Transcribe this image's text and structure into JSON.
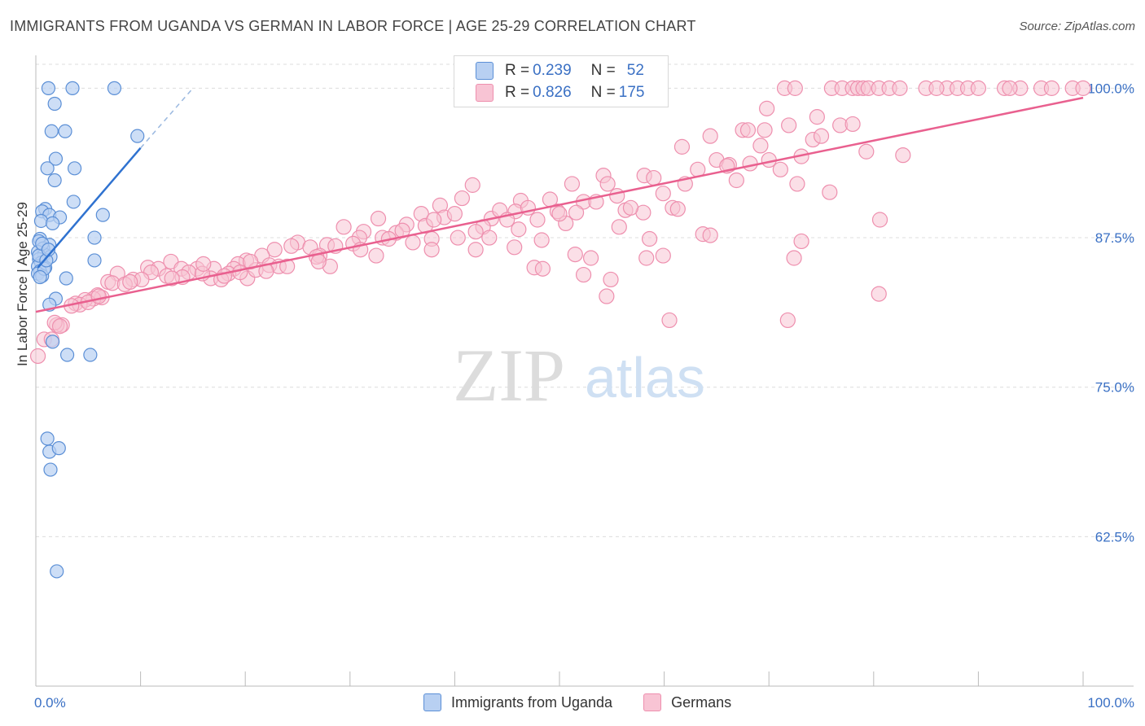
{
  "header": {
    "title": "IMMIGRANTS FROM UGANDA VS GERMAN IN LABOR FORCE | AGE 25-29 CORRELATION CHART",
    "source": "Source: ZipAtlas.com"
  },
  "watermark": {
    "zip": "ZIP",
    "atlas": "atlas"
  },
  "legend_top": {
    "rows": [
      {
        "r_label": "R = ",
        "r_value": "0.239",
        "n_label": "N = ",
        "n_value": "52"
      },
      {
        "r_label": "R = ",
        "r_value": "0.826",
        "n_label": "N = ",
        "n_value": "175"
      }
    ]
  },
  "colors": {
    "blue_fill": "#b8d0f2",
    "blue_stroke": "#5b8fd6",
    "blue_line": "#2f72d0",
    "pink_fill": "#f8c4d4",
    "pink_stroke": "#ee8fae",
    "pink_line": "#e9608f",
    "tick_label": "#3a70c4",
    "grid": "#dcdcdc"
  },
  "chart_data": {
    "type": "scatter",
    "title": "IMMIGRANTS FROM UGANDA VS GERMAN IN LABOR FORCE | AGE 25-29 CORRELATION CHART",
    "xlabel": "",
    "ylabel": "In Labor Force | Age 25-29",
    "xlim": [
      0,
      100
    ],
    "ylim": [
      50,
      102
    ],
    "x_tick_labels": [
      "0.0%",
      "100.0%"
    ],
    "y_ticks": [
      62.5,
      75.0,
      87.5,
      100.0
    ],
    "y_tick_labels": [
      "62.5%",
      "75.0%",
      "87.5%",
      "100.0%"
    ],
    "grid": true,
    "legend_position": "bottom",
    "series": [
      {
        "name": "Immigrants from Uganda",
        "r": 0.239,
        "n": 52,
        "trend": {
          "x0": 0.2,
          "y0": 85.0,
          "x1": 10.0,
          "y1": 95.0,
          "dash_to_x": 15.0,
          "dash_to_y": 100.0
        },
        "points": [
          [
            1.2,
            100
          ],
          [
            3.5,
            100
          ],
          [
            7.5,
            100
          ],
          [
            1.8,
            98.7
          ],
          [
            1.5,
            96.4
          ],
          [
            2.8,
            96.4
          ],
          [
            9.7,
            96
          ],
          [
            1.9,
            94.1
          ],
          [
            3.7,
            93.3
          ],
          [
            1.1,
            93.3
          ],
          [
            1.8,
            92.3
          ],
          [
            3.6,
            90.5
          ],
          [
            0.9,
            89.9
          ],
          [
            0.6,
            89.7
          ],
          [
            1.3,
            89.4
          ],
          [
            2.3,
            89.2
          ],
          [
            6.4,
            89.4
          ],
          [
            0.5,
            88.9
          ],
          [
            1.6,
            88.7
          ],
          [
            0.4,
            87.4
          ],
          [
            5.6,
            87.5
          ],
          [
            0.3,
            87.2
          ],
          [
            1.3,
            86.9
          ],
          [
            0.7,
            86.6
          ],
          [
            0.2,
            86.3
          ],
          [
            0.8,
            86.1
          ],
          [
            1.4,
            85.9
          ],
          [
            0.3,
            85.7
          ],
          [
            5.6,
            85.6
          ],
          [
            0.5,
            85.4
          ],
          [
            0.2,
            85.1
          ],
          [
            0.9,
            85.0
          ],
          [
            0.4,
            84.7
          ],
          [
            0.2,
            84.5
          ],
          [
            0.6,
            84.3
          ],
          [
            2.9,
            84.1
          ],
          [
            1.9,
            82.4
          ],
          [
            1.3,
            81.9
          ],
          [
            1.6,
            78.8
          ],
          [
            3.0,
            77.7
          ],
          [
            5.2,
            77.7
          ],
          [
            1.1,
            70.7
          ],
          [
            1.3,
            69.6
          ],
          [
            2.2,
            69.9
          ],
          [
            1.4,
            68.1
          ],
          [
            2.0,
            59.6
          ],
          [
            0.3,
            86.0
          ],
          [
            0.6,
            87.0
          ],
          [
            0.8,
            84.9
          ],
          [
            1.0,
            85.6
          ],
          [
            0.4,
            84.2
          ],
          [
            1.2,
            86.5
          ]
        ]
      },
      {
        "name": "Germans",
        "r": 0.826,
        "n": 175,
        "trend": {
          "x0": 0.0,
          "y0": 81.3,
          "x1": 100.0,
          "y1": 99.2
        },
        "points": [
          [
            71.5,
            100
          ],
          [
            72.5,
            100
          ],
          [
            76.0,
            100
          ],
          [
            77.0,
            100
          ],
          [
            78.0,
            100
          ],
          [
            78.5,
            100
          ],
          [
            79.0,
            100
          ],
          [
            79.5,
            100
          ],
          [
            80.5,
            100
          ],
          [
            81.5,
            100
          ],
          [
            82.5,
            100
          ],
          [
            85.0,
            100
          ],
          [
            87.0,
            100
          ],
          [
            88.0,
            100
          ],
          [
            89.0,
            100
          ],
          [
            90.0,
            100
          ],
          [
            92.5,
            100
          ],
          [
            94.0,
            100
          ],
          [
            96.0,
            100
          ],
          [
            97.0,
            100
          ],
          [
            99.0,
            100
          ],
          [
            100.0,
            100
          ],
          [
            93.0,
            100
          ],
          [
            86.0,
            100
          ],
          [
            69.8,
            98.3
          ],
          [
            74.6,
            97.6
          ],
          [
            67.5,
            96.5
          ],
          [
            69.6,
            96.5
          ],
          [
            71.9,
            96.9
          ],
          [
            76.8,
            96.9
          ],
          [
            64.4,
            96.0
          ],
          [
            74.2,
            95.7
          ],
          [
            61.7,
            95.1
          ],
          [
            69.2,
            95.2
          ],
          [
            73.1,
            94.3
          ],
          [
            79.3,
            94.7
          ],
          [
            82.8,
            94.4
          ],
          [
            65.0,
            94.0
          ],
          [
            66.2,
            93.6
          ],
          [
            68.2,
            93.7
          ],
          [
            63.2,
            93.2
          ],
          [
            71.1,
            93.2
          ],
          [
            66.9,
            92.3
          ],
          [
            54.2,
            92.7
          ],
          [
            58.1,
            92.7
          ],
          [
            72.7,
            92.0
          ],
          [
            54.6,
            92.0
          ],
          [
            51.2,
            92.0
          ],
          [
            75.8,
            91.3
          ],
          [
            59.9,
            91.2
          ],
          [
            41.7,
            91.9
          ],
          [
            49.1,
            90.7
          ],
          [
            52.3,
            90.5
          ],
          [
            46.3,
            90.6
          ],
          [
            38.6,
            90.2
          ],
          [
            40.7,
            90.8
          ],
          [
            60.8,
            90.0
          ],
          [
            61.3,
            89.9
          ],
          [
            45.8,
            89.7
          ],
          [
            49.8,
            89.7
          ],
          [
            51.6,
            89.6
          ],
          [
            36.8,
            89.5
          ],
          [
            56.3,
            89.8
          ],
          [
            58.0,
            89.6
          ],
          [
            32.7,
            89.1
          ],
          [
            39.0,
            89.2
          ],
          [
            43.5,
            89.1
          ],
          [
            47.9,
            89.0
          ],
          [
            29.4,
            88.4
          ],
          [
            31.3,
            88.0
          ],
          [
            35.4,
            88.6
          ],
          [
            37.2,
            88.5
          ],
          [
            42.7,
            88.4
          ],
          [
            46.1,
            88.2
          ],
          [
            50.6,
            88.7
          ],
          [
            55.7,
            88.4
          ],
          [
            80.6,
            89.0
          ],
          [
            34.4,
            87.9
          ],
          [
            40.3,
            87.5
          ],
          [
            43.3,
            87.5
          ],
          [
            30.9,
            87.5
          ],
          [
            33.1,
            87.5
          ],
          [
            27.8,
            86.9
          ],
          [
            25.0,
            87.1
          ],
          [
            28.6,
            86.8
          ],
          [
            36.0,
            87.1
          ],
          [
            37.8,
            87.4
          ],
          [
            26.2,
            86.7
          ],
          [
            24.4,
            86.8
          ],
          [
            22.8,
            86.5
          ],
          [
            42.0,
            86.5
          ],
          [
            48.3,
            87.3
          ],
          [
            63.7,
            87.8
          ],
          [
            64.4,
            87.7
          ],
          [
            73.1,
            87.2
          ],
          [
            58.6,
            87.4
          ],
          [
            21.6,
            86.0
          ],
          [
            27.1,
            86.0
          ],
          [
            20.1,
            85.6
          ],
          [
            19.3,
            85.3
          ],
          [
            22.3,
            85.2
          ],
          [
            12.9,
            85.5
          ],
          [
            10.7,
            85.0
          ],
          [
            11.7,
            84.9
          ],
          [
            13.9,
            84.9
          ],
          [
            15.4,
            84.9
          ],
          [
            17.0,
            84.9
          ],
          [
            18.9,
            84.9
          ],
          [
            23.2,
            85.1
          ],
          [
            28.1,
            85.1
          ],
          [
            32.5,
            86.0
          ],
          [
            37.8,
            86.5
          ],
          [
            45.7,
            86.7
          ],
          [
            51.5,
            86.1
          ],
          [
            58.3,
            85.8
          ],
          [
            59.9,
            86.0
          ],
          [
            53.0,
            85.8
          ],
          [
            72.4,
            85.8
          ],
          [
            47.6,
            85.0
          ],
          [
            7.8,
            84.5
          ],
          [
            9.3,
            84.0
          ],
          [
            11.0,
            84.6
          ],
          [
            12.5,
            84.3
          ],
          [
            14.6,
            84.6
          ],
          [
            16.7,
            84.1
          ],
          [
            18.4,
            84.5
          ],
          [
            20.2,
            84.1
          ],
          [
            6.9,
            83.8
          ],
          [
            7.3,
            83.7
          ],
          [
            8.5,
            83.6
          ],
          [
            10.1,
            84.0
          ],
          [
            14.0,
            84.2
          ],
          [
            17.7,
            84.0
          ],
          [
            19.5,
            84.6
          ],
          [
            5.9,
            82.7
          ],
          [
            6.3,
            82.5
          ],
          [
            5.5,
            82.4
          ],
          [
            4.7,
            82.3
          ],
          [
            3.8,
            82.0
          ],
          [
            4.2,
            81.9
          ],
          [
            3.4,
            81.8
          ],
          [
            5.0,
            82.1
          ],
          [
            52.3,
            84.4
          ],
          [
            54.9,
            84.0
          ],
          [
            48.4,
            84.9
          ],
          [
            60.5,
            80.6
          ],
          [
            54.5,
            82.6
          ],
          [
            71.8,
            80.6
          ],
          [
            80.5,
            82.8
          ],
          [
            2.5,
            80.2
          ],
          [
            2.0,
            80.2
          ],
          [
            0.8,
            79.0
          ],
          [
            1.5,
            79.0
          ],
          [
            0.2,
            77.6
          ],
          [
            1.8,
            80.4
          ],
          [
            2.3,
            80.1
          ],
          [
            6.0,
            82.6
          ],
          [
            9.0,
            83.8
          ],
          [
            13.0,
            84.1
          ],
          [
            15.9,
            84.5
          ],
          [
            18.0,
            84.3
          ],
          [
            21.0,
            84.8
          ],
          [
            24.0,
            85.1
          ],
          [
            26.8,
            85.9
          ],
          [
            30.3,
            87.0
          ],
          [
            33.7,
            87.4
          ],
          [
            35.0,
            88.1
          ],
          [
            38.0,
            89.0
          ],
          [
            40.0,
            89.5
          ],
          [
            44.3,
            89.8
          ],
          [
            47.0,
            90.0
          ],
          [
            50.0,
            89.5
          ],
          [
            53.5,
            90.5
          ],
          [
            56.8,
            90.0
          ],
          [
            62.0,
            92.0
          ],
          [
            66.0,
            93.5
          ],
          [
            70.0,
            94.0
          ],
          [
            75.0,
            96.0
          ],
          [
            78.0,
            97.0
          ],
          [
            68.0,
            96.5
          ],
          [
            59.0,
            92.5
          ],
          [
            55.5,
            91.0
          ],
          [
            45.0,
            89.0
          ],
          [
            42.0,
            88.0
          ],
          [
            31.0,
            86.5
          ],
          [
            27.0,
            85.5
          ],
          [
            22.0,
            84.7
          ],
          [
            20.5,
            85.5
          ],
          [
            16.0,
            85.3
          ]
        ]
      }
    ]
  },
  "bottom_legend": [
    "Immigrants from Uganda",
    "Germans"
  ]
}
